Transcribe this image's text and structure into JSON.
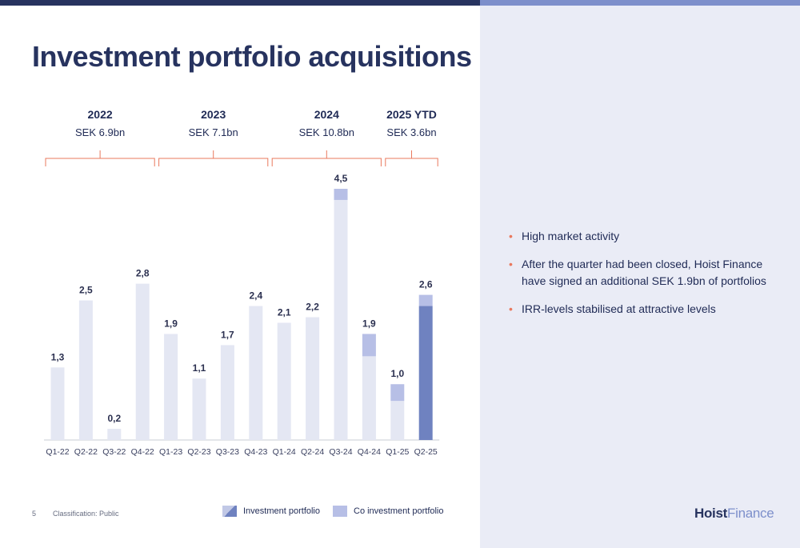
{
  "title": "Investment portfolio acquisitions",
  "years": [
    {
      "label": "2022",
      "total": "SEK 6.9bn"
    },
    {
      "label": "2023",
      "total": "SEK 7.1bn"
    },
    {
      "label": "2024",
      "total": "SEK 10.8bn"
    },
    {
      "label": "2025 YTD",
      "total": "SEK 3.6bn"
    }
  ],
  "chart_data": {
    "type": "bar",
    "stacked": true,
    "categories": [
      "Q1-22",
      "Q2-22",
      "Q3-22",
      "Q4-22",
      "Q1-23",
      "Q2-23",
      "Q3-23",
      "Q4-23",
      "Q1-24",
      "Q2-24",
      "Q3-24",
      "Q4-24",
      "Q1-25",
      "Q2-25"
    ],
    "totals": [
      1.3,
      2.5,
      0.2,
      2.8,
      1.9,
      1.1,
      1.7,
      2.4,
      2.1,
      2.2,
      4.5,
      1.9,
      1.0,
      2.6
    ],
    "value_labels": [
      "1,3",
      "2,5",
      "0,2",
      "2,8",
      "1,9",
      "1,1",
      "1,7",
      "2,4",
      "2,1",
      "2,2",
      "4,5",
      "1,9",
      "1,0",
      "2,6"
    ],
    "series": [
      {
        "name": "Investment portfolio",
        "values": [
          1.3,
          2.5,
          0.2,
          2.8,
          1.9,
          1.1,
          1.7,
          2.4,
          2.1,
          2.2,
          4.3,
          1.5,
          0.7,
          2.4
        ]
      },
      {
        "name": "Co investment portfolio",
        "values": [
          0,
          0,
          0,
          0,
          0,
          0,
          0,
          0,
          0,
          0,
          0.2,
          0.4,
          0.3,
          0.2
        ]
      }
    ],
    "ylim": [
      0,
      4.5
    ],
    "grid": false,
    "legend_position": "bottom",
    "colors": {
      "investment": "#e4e7f3",
      "investment_latest": "#6f82c0",
      "co_investment": "#b7bfe6",
      "bracket": "#e9795e",
      "axis": "#c9ccd6"
    }
  },
  "bullets": [
    "High market activity",
    "After the quarter had been closed, Hoist Finance have signed an additional SEK 1.9bn of portfolios",
    "IRR-levels stabilised at attractive levels"
  ],
  "legend": {
    "investment": "Investment portfolio",
    "co_investment": "Co investment portfolio"
  },
  "footer": {
    "page": "5",
    "classification": "Classification: Public"
  },
  "logo": {
    "part1": "Hoist",
    "part2": "Finance"
  }
}
